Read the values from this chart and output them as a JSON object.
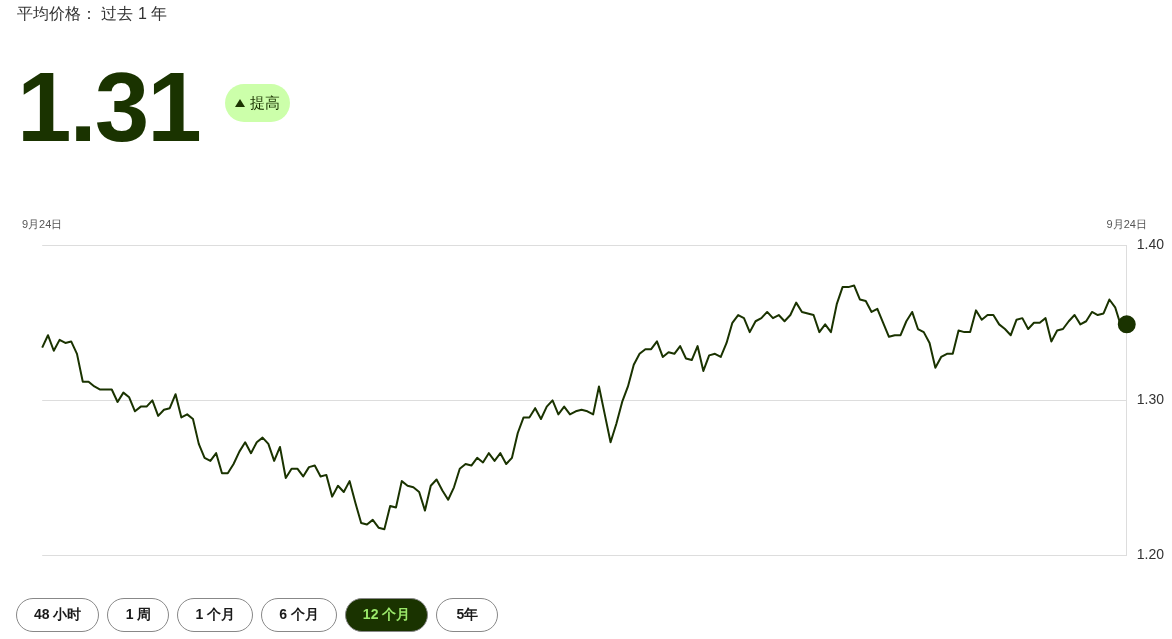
{
  "chart_data": {
    "type": "line",
    "title": "平均价格： 过去 1 年",
    "subtitle": "1.31",
    "annotations": [
      "提高",
      "48 小时",
      "1 周",
      "1 个月",
      "6 个月",
      "12 个月",
      "5年"
    ],
    "categories": [
      "9月24日",
      null,
      null,
      null,
      null,
      null,
      null,
      null,
      null,
      null,
      null,
      null,
      null,
      null,
      null,
      null,
      null,
      null,
      null,
      null,
      null,
      null,
      null,
      null,
      null,
      null,
      null,
      null,
      null,
      null,
      null,
      null,
      null,
      null,
      null,
      null,
      null,
      null,
      null,
      null,
      null,
      null,
      null,
      null,
      null,
      null,
      null,
      null,
      null,
      null,
      null,
      null,
      null,
      null,
      null,
      null,
      null,
      null,
      null,
      null,
      null,
      null,
      null,
      null,
      null,
      null,
      null,
      null,
      null,
      null,
      null,
      null,
      null,
      null,
      null,
      null,
      null,
      null,
      null,
      null,
      null,
      null,
      null,
      null,
      null,
      null,
      null,
      null,
      null,
      null,
      null,
      null,
      null,
      null,
      null,
      null,
      null,
      null,
      null,
      null,
      null,
      null,
      null,
      null,
      null,
      null,
      null,
      null,
      null,
      null,
      null,
      null,
      null,
      null,
      null,
      null,
      null,
      null,
      null,
      null,
      null,
      null,
      null,
      null,
      null,
      null,
      null,
      null,
      null,
      null,
      null,
      null,
      null,
      null,
      null,
      null,
      null,
      null,
      null,
      null,
      null,
      null,
      null,
      null,
      null,
      null,
      null,
      null,
      null,
      null,
      null,
      null,
      null,
      null,
      null,
      null,
      null,
      null,
      null,
      null,
      null,
      null,
      null,
      null,
      null,
      null,
      null,
      null,
      null,
      null,
      null,
      null,
      null,
      null,
      null,
      null,
      null,
      null,
      null,
      null,
      null,
      null,
      null,
      null,
      null,
      null,
      null,
      "9月24日"
    ],
    "series": [
      {
        "color": "#1a3300",
        "values": [
          1.334,
          1.342,
          1.332,
          1.339,
          1.337,
          1.338,
          1.33,
          1.312,
          1.312,
          1.309,
          1.307,
          1.307,
          1.307,
          1.299,
          1.305,
          1.302,
          1.293,
          1.296,
          1.296,
          1.3,
          1.29,
          1.294,
          1.295,
          1.304,
          1.289,
          1.291,
          1.288,
          1.272,
          1.263,
          1.261,
          1.266,
          1.253,
          1.253,
          1.259,
          1.267,
          1.273,
          1.266,
          1.273,
          1.276,
          1.272,
          1.261,
          1.27,
          1.25,
          1.256,
          1.256,
          1.251,
          1.257,
          1.258,
          1.251,
          1.252,
          1.238,
          1.245,
          1.241,
          1.248,
          1.234,
          1.221,
          1.22,
          1.223,
          1.218,
          1.217,
          1.232,
          1.231,
          1.248,
          1.245,
          1.244,
          1.241,
          1.229,
          1.245,
          1.249,
          1.242,
          1.236,
          1.244,
          1.256,
          1.259,
          1.258,
          1.263,
          1.26,
          1.266,
          1.261,
          1.266,
          1.259,
          1.263,
          1.279,
          1.289,
          1.289,
          1.295,
          1.288,
          1.296,
          1.3,
          1.291,
          1.296,
          1.291,
          1.293,
          1.294,
          1.293,
          1.291,
          1.309,
          1.291,
          1.273,
          1.285,
          1.299,
          1.309,
          1.323,
          1.33,
          1.333,
          1.333,
          1.338,
          1.328,
          1.331,
          1.33,
          1.335,
          1.327,
          1.326,
          1.335,
          1.319,
          1.329,
          1.33,
          1.328,
          1.337,
          1.35,
          1.355,
          1.353,
          1.344,
          1.351,
          1.353,
          1.357,
          1.353,
          1.355,
          1.351,
          1.355,
          1.363,
          1.357,
          1.356,
          1.355,
          1.344,
          1.349,
          1.344,
          1.362,
          1.373,
          1.373,
          1.374,
          1.365,
          1.364,
          1.357,
          1.359,
          1.35,
          1.341,
          1.342,
          1.342,
          1.351,
          1.357,
          1.346,
          1.344,
          1.337,
          1.321,
          1.328,
          1.33,
          1.33,
          1.345,
          1.344,
          1.344,
          1.358,
          1.352,
          1.355,
          1.355,
          1.349,
          1.346,
          1.342,
          1.352,
          1.353,
          1.346,
          1.35,
          1.35,
          1.353,
          1.338,
          1.345,
          1.346,
          1.351,
          1.355,
          1.349,
          1.351,
          1.357,
          1.355,
          1.356,
          1.365,
          1.36,
          1.348,
          1.349
        ]
      }
    ],
    "ylim": [
      1.2,
      1.4
    ],
    "yticks": [
      {
        "value": 1.2,
        "label": "1.20"
      },
      {
        "value": 1.3,
        "label": "1.30"
      },
      {
        "value": 1.4,
        "label": "1.40"
      }
    ],
    "grid": "y",
    "legend": false,
    "marker": "none",
    "line_style": "solid"
  }
}
